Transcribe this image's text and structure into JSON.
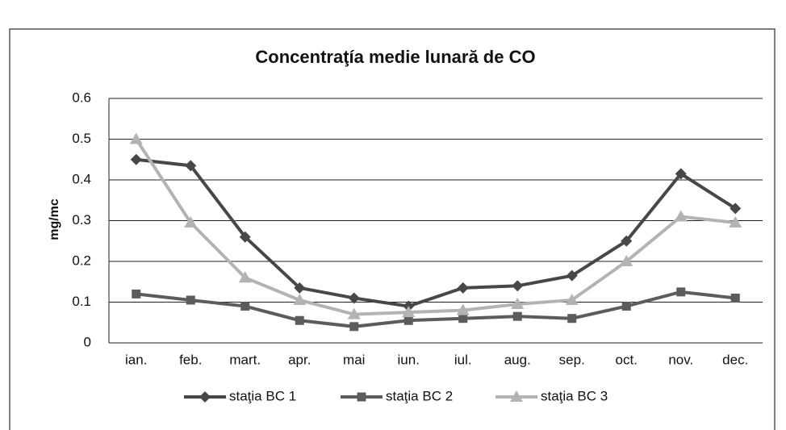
{
  "chart_data": {
    "type": "line",
    "title": "Concentraţía medie lunară de CO",
    "y_label": "mg/mc",
    "categories": [
      "ian.",
      "feb.",
      "mart.",
      "apr.",
      "mai",
      "iun.",
      "iul.",
      "aug.",
      "sep.",
      "oct.",
      "nov.",
      "dec."
    ],
    "series": [
      {
        "name": "staţia BC 1",
        "color": "#474747",
        "marker": "diamond",
        "values": [
          0.45,
          0.435,
          0.26,
          0.135,
          0.11,
          0.09,
          0.135,
          0.14,
          0.165,
          0.25,
          0.415,
          0.33
        ]
      },
      {
        "name": "staţia BC 2",
        "color": "#5c5c5c",
        "marker": "square",
        "values": [
          0.12,
          0.105,
          0.09,
          0.055,
          0.04,
          0.055,
          0.06,
          0.065,
          0.06,
          0.09,
          0.125,
          0.11
        ]
      },
      {
        "name": "staţia BC 3",
        "color": "#b3b3b3",
        "marker": "triangle",
        "values": [
          0.5,
          0.295,
          0.16,
          0.105,
          0.07,
          0.075,
          0.08,
          0.095,
          0.105,
          0.2,
          0.31,
          0.295
        ]
      }
    ],
    "ylim": [
      0,
      0.6
    ],
    "yticks": [
      0,
      0.1,
      0.2,
      0.3,
      0.4,
      0.5,
      0.6
    ],
    "grid": true,
    "legend": "bottom"
  }
}
